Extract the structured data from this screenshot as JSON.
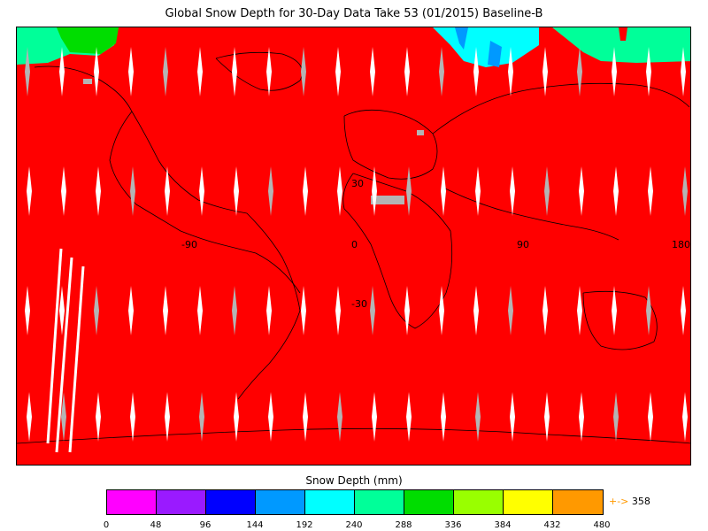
{
  "title": "Global Snow Depth for 30-Day Data Take 53 (01/2015) Baseline-B",
  "map": {
    "grid_labels": {
      "lon_neg90": "-90",
      "lon_0": "0",
      "lon_90": "90",
      "lon_180": "180",
      "lat_30": "30",
      "lat_neg30": "-30"
    },
    "colors": {
      "background_fill": "#ff0000",
      "no_data": "#b4b4b4",
      "gap": "#ffffff",
      "coast": "#000000"
    }
  },
  "legend": {
    "title": "Snow Depth (mm)",
    "ticks": [
      "0",
      "48",
      "96",
      "144",
      "192",
      "240",
      "288",
      "336",
      "384",
      "432",
      "480"
    ],
    "colors": [
      "#ff00ff",
      "#9a1aff",
      "#0000ff",
      "#0099ff",
      "#00ffff",
      "#00ff99",
      "#00dd00",
      "#99ff00",
      "#ffff00",
      "#ff9900"
    ],
    "max_arrow": "+->",
    "max_value": "358"
  }
}
